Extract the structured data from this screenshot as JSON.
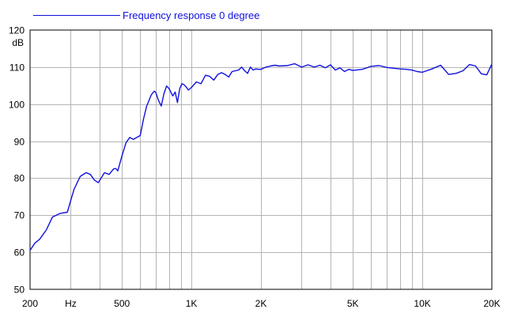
{
  "chart_data": {
    "type": "line",
    "title": "",
    "xlabel": "",
    "ylabel": "dB",
    "x_scale": "log",
    "xlim": [
      200,
      20000
    ],
    "ylim": [
      50,
      120
    ],
    "grid": true,
    "legend_position": "top-left",
    "colors": {
      "series": "#1010dd",
      "grid": "#b4b4b4",
      "frame": "#000000"
    },
    "x_tick_values": [
      200,
      300,
      400,
      500,
      600,
      700,
      800,
      900,
      1000,
      2000,
      3000,
      4000,
      5000,
      6000,
      7000,
      8000,
      9000,
      10000,
      20000
    ],
    "x_tick_labels": [
      {
        "value": 200,
        "label": "200"
      },
      {
        "value": 300,
        "label": "Hz"
      },
      {
        "value": 500,
        "label": "500"
      },
      {
        "value": 1000,
        "label": "1K"
      },
      {
        "value": 2000,
        "label": "2K"
      },
      {
        "value": 5000,
        "label": "5K"
      },
      {
        "value": 10000,
        "label": "10K"
      },
      {
        "value": 20000,
        "label": "20K"
      }
    ],
    "y_ticks": [
      50,
      60,
      70,
      80,
      90,
      100,
      110,
      120
    ],
    "series": [
      {
        "name": "Frequency response 0 degree",
        "x": [
          200,
          210,
          220,
          235,
          250,
          270,
          290,
          310,
          330,
          350,
          365,
          380,
          395,
          420,
          440,
          460,
          470,
          480,
          500,
          520,
          540,
          560,
          580,
          600,
          620,
          640,
          650,
          670,
          690,
          700,
          720,
          740,
          760,
          780,
          800,
          830,
          850,
          870,
          890,
          910,
          930,
          950,
          970,
          1000,
          1050,
          1100,
          1150,
          1200,
          1250,
          1300,
          1350,
          1400,
          1450,
          1500,
          1550,
          1600,
          1650,
          1700,
          1750,
          1800,
          1850,
          1900,
          1950,
          2000,
          2100,
          2200,
          2300,
          2400,
          2600,
          2800,
          3000,
          3200,
          3400,
          3600,
          3800,
          4000,
          4200,
          4400,
          4600,
          4800,
          5000,
          5500,
          6000,
          6500,
          7000,
          7500,
          8000,
          8500,
          9000,
          9500,
          10000,
          11000,
          12000,
          13000,
          14000,
          15000,
          16000,
          17000,
          18000,
          19000,
          20000
        ],
        "y": [
          60.5,
          62.5,
          63.5,
          66.0,
          69.5,
          70.5,
          70.8,
          77.0,
          80.5,
          81.5,
          81.0,
          79.5,
          78.8,
          81.5,
          81.0,
          82.5,
          82.6,
          82.0,
          86.0,
          89.5,
          91.0,
          90.5,
          91.0,
          91.5,
          96.0,
          99.5,
          100.5,
          102.5,
          103.5,
          103.2,
          101.0,
          99.5,
          102.8,
          104.9,
          104.2,
          102.2,
          103.3,
          100.4,
          104.2,
          105.5,
          105.2,
          104.6,
          103.8,
          104.5,
          106.0,
          105.5,
          107.8,
          107.5,
          106.5,
          108.0,
          108.5,
          108.0,
          107.3,
          108.8,
          109.0,
          109.2,
          110.0,
          109.0,
          108.3,
          110.0,
          109.2,
          109.5,
          109.4,
          109.4,
          110.0,
          110.3,
          110.5,
          110.3,
          110.4,
          110.9,
          110.0,
          110.6,
          110.0,
          110.5,
          109.8,
          110.6,
          109.2,
          109.8,
          108.8,
          109.4,
          109.1,
          109.4,
          110.2,
          110.4,
          109.9,
          109.7,
          109.5,
          109.4,
          109.2,
          108.8,
          108.6,
          109.5,
          110.5,
          108.0,
          108.3,
          109.0,
          110.7,
          110.3,
          108.2,
          107.9,
          110.8
        ]
      }
    ]
  }
}
